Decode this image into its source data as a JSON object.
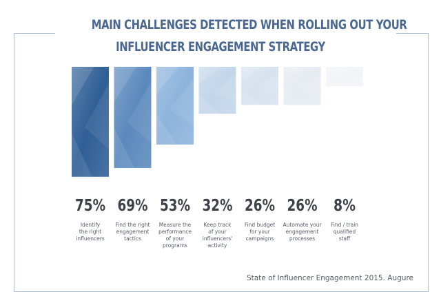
{
  "title": {
    "line1": "MAIN CHALLENGES DETECTED WHEN ROLLING OUT YOUR",
    "line2": "INFLUENCER ENGAGEMENT STRATEGY"
  },
  "source": "State of Influencer Engagement 2015. Augure",
  "colors": {
    "title": "#4a6790",
    "frame": "#aebfd4",
    "value_text": "#3d4148",
    "caption_text": "#555b66",
    "bars": [
      "#2f5f96",
      "#5b89bd",
      "#8db3dc",
      "#c3d6ea",
      "#d7e2ef",
      "#e6ebf2",
      "#f2f4f7"
    ]
  },
  "chart_data": {
    "type": "bar",
    "categories": [
      "Identify the right influencers",
      "Find the right engagement tactics",
      "Measure the performance of your programs",
      "Keep track of your influencers' activity",
      "Find budget for your campaigns",
      "Automate your engagement processes",
      "Find / train qualified staff"
    ],
    "values": [
      75,
      69,
      53,
      32,
      26,
      26,
      8
    ],
    "value_labels": [
      "75%",
      "69%",
      "53%",
      "32%",
      "26%",
      "26%",
      "8%"
    ],
    "caption_lines": [
      [
        "Identify",
        "the right",
        "influencers"
      ],
      [
        "Find the right",
        "engagement",
        "tactics"
      ],
      [
        "Measure the",
        "performance",
        "of your",
        "programs"
      ],
      [
        "Keep track",
        "of your",
        "influencers'",
        "activity"
      ],
      [
        "Find budget",
        "for your",
        "campaigns"
      ],
      [
        "Automate your",
        "engagement",
        "processes"
      ],
      [
        "Find / train",
        "qualified",
        "staff"
      ]
    ],
    "title": "MAIN CHALLENGES DETECTED WHEN ROLLING OUT YOUR INFLUENCER ENGAGEMENT STRATEGY",
    "xlabel": "",
    "ylabel": "",
    "ylim": [
      0,
      100
    ],
    "grid": false,
    "legend": "none",
    "bar_direction": "down"
  }
}
